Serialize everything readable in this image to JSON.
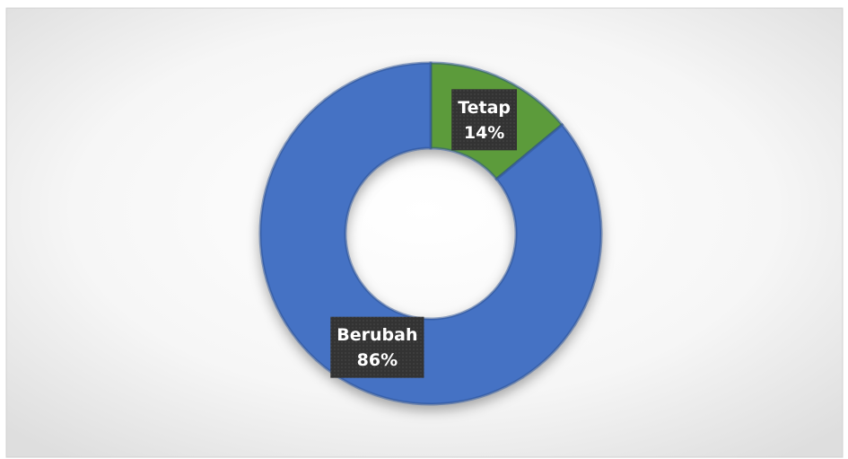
{
  "chart_data": {
    "type": "donut",
    "categories": [
      "Tetap",
      "Berubah"
    ],
    "values": [
      14,
      86
    ],
    "value_labels": [
      "14%",
      "86%"
    ],
    "colors": [
      "#5b9b3a",
      "#4472c4"
    ]
  }
}
